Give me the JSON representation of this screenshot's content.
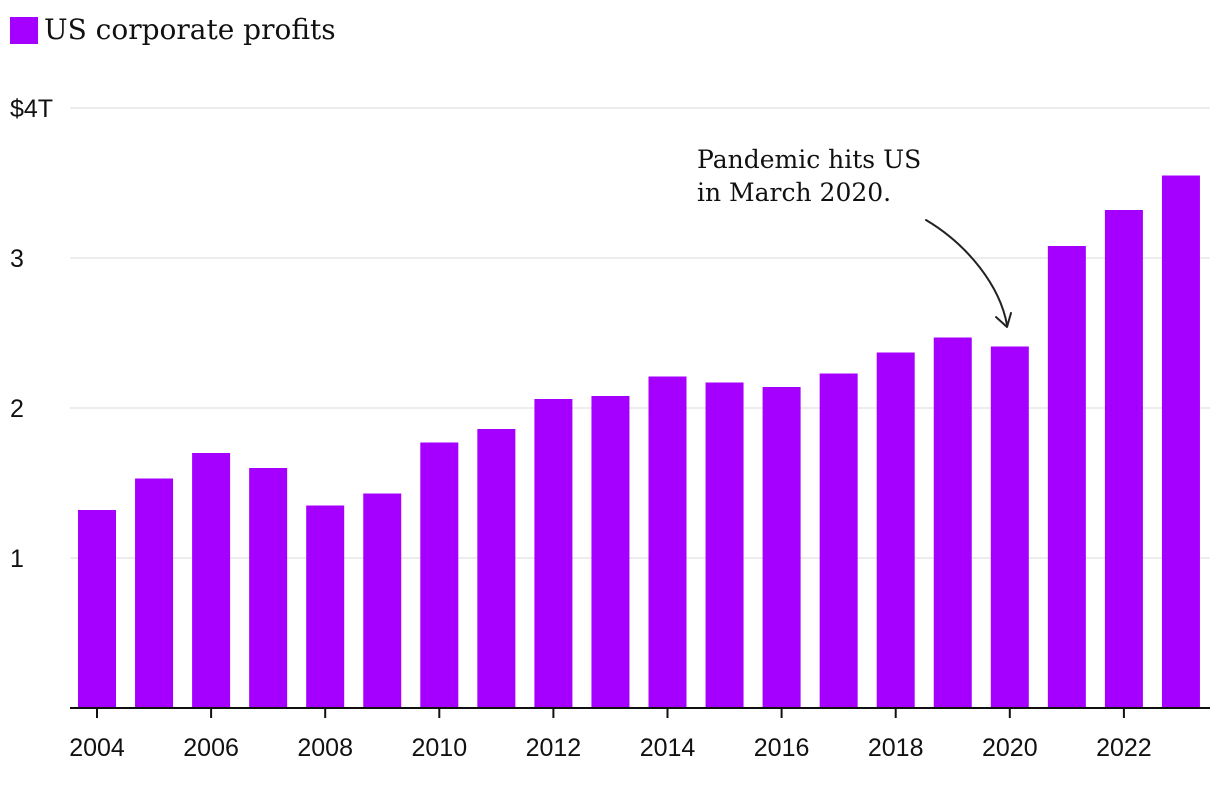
{
  "chart_data": {
    "type": "bar",
    "legend": {
      "label": "US corporate profits",
      "color": "#A500FF"
    },
    "categories": [
      "2004",
      "2005",
      "2006",
      "2007",
      "2008",
      "2009",
      "2010",
      "2011",
      "2012",
      "2013",
      "2014",
      "2015",
      "2016",
      "2017",
      "2018",
      "2019",
      "2020",
      "2021",
      "2022",
      "2023"
    ],
    "values": [
      1.32,
      1.53,
      1.7,
      1.6,
      1.35,
      1.43,
      1.77,
      1.86,
      2.06,
      2.08,
      2.21,
      2.17,
      2.14,
      2.23,
      2.37,
      2.47,
      2.41,
      3.08,
      3.32,
      3.55
    ],
    "x_tick_labels": [
      "2004",
      "2006",
      "2008",
      "2010",
      "2012",
      "2014",
      "2016",
      "2018",
      "2020",
      "2022"
    ],
    "y_ticks": [
      {
        "value": 4,
        "label": "$4T"
      },
      {
        "value": 3,
        "label": "3"
      },
      {
        "value": 2,
        "label": "2"
      },
      {
        "value": 1,
        "label": "1"
      }
    ],
    "ylim": [
      0,
      4
    ],
    "title": "",
    "xlabel": "",
    "ylabel": "",
    "annotation": {
      "lines": [
        "Pandemic hits US",
        "in March 2020."
      ],
      "target_category": "2020"
    },
    "grid": true
  }
}
